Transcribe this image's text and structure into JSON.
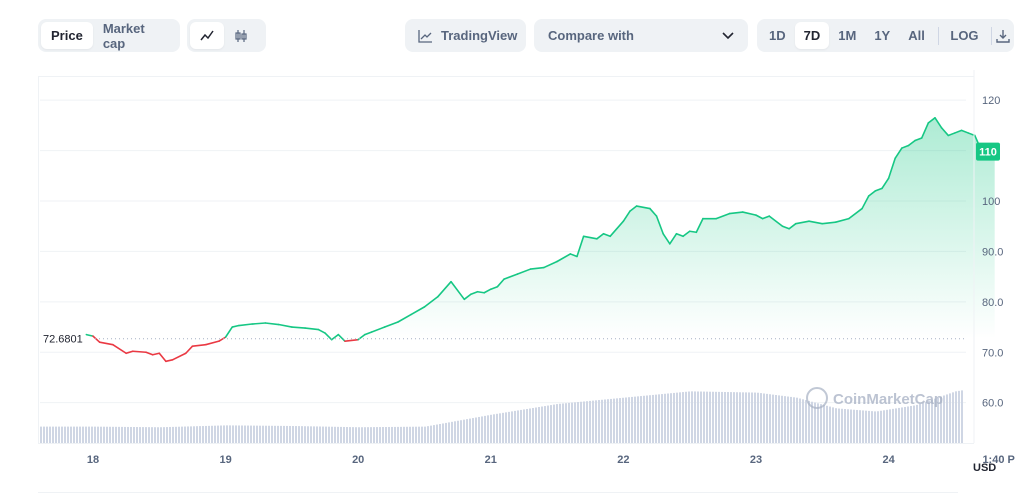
{
  "toolbar": {
    "view_tabs": [
      "Price",
      "Market cap"
    ],
    "active_view": "Price",
    "chart_type_icons": [
      "line-chart-icon",
      "candlestick-icon"
    ],
    "tradingview_label": "TradingView",
    "compare_label": "Compare with",
    "ranges": [
      "1D",
      "7D",
      "1M",
      "1Y",
      "All"
    ],
    "active_range": "7D",
    "log_label": "LOG",
    "download_icon": "download-icon"
  },
  "colors": {
    "up": "#16c784",
    "down": "#ea3943",
    "volume": "#cfd6e4",
    "grid": "#eff2f5",
    "text": "#58667e"
  },
  "chart_data": {
    "type": "area",
    "ylim": [
      52,
      124
    ],
    "y_ticks": [
      "120",
      "110",
      "100",
      "90.0",
      "80.0",
      "70.0",
      "60.0"
    ],
    "y_tick_values": [
      120,
      110,
      100,
      90,
      80,
      70,
      60
    ],
    "x_ticks": [
      "18",
      "19",
      "20",
      "21",
      "22",
      "23",
      "24",
      "1:40 P"
    ],
    "x_tick_values": [
      0,
      1,
      2,
      3,
      4,
      5,
      6,
      6.83
    ],
    "xlim": [
      -0.4,
      6.9
    ],
    "baseline_label": "72.6801",
    "baseline_value": 72.68,
    "current_price_label": "110",
    "current_price_value": 109.8,
    "axis_unit_label": "USD",
    "watermark": "CoinMarketCap",
    "series": [
      {
        "x": [
          -0.05,
          0.0,
          0.05,
          0.15,
          0.25,
          0.3,
          0.4,
          0.45,
          0.5,
          0.55,
          0.6,
          0.7,
          0.75,
          0.85,
          0.95,
          1.0,
          1.05,
          1.1,
          1.2,
          1.3,
          1.4,
          1.5,
          1.6,
          1.7,
          1.75,
          1.8,
          1.85,
          1.9,
          2.0,
          2.05,
          2.1,
          2.2,
          2.3,
          2.4,
          2.5,
          2.6,
          2.7,
          2.8,
          2.85,
          2.9,
          2.95,
          3.0,
          3.05,
          3.1,
          3.2,
          3.3,
          3.4,
          3.5,
          3.6,
          3.65,
          3.7,
          3.8,
          3.85,
          3.9,
          4.0,
          4.05,
          4.1,
          4.2,
          4.25,
          4.3,
          4.35,
          4.4,
          4.45,
          4.5,
          4.55,
          4.6,
          4.7,
          4.8,
          4.9,
          5.0,
          5.05,
          5.1,
          5.2,
          5.25,
          5.3,
          5.4,
          5.5,
          5.6,
          5.7,
          5.8,
          5.85,
          5.9,
          5.95,
          6.0,
          6.05,
          6.1,
          6.15,
          6.2,
          6.25,
          6.3,
          6.35,
          6.4,
          6.45,
          6.5,
          6.55,
          6.6,
          6.65,
          6.7,
          6.75,
          6.8
        ],
        "y": [
          73.5,
          73.2,
          72.0,
          71.5,
          69.8,
          70.2,
          70.0,
          69.5,
          69.8,
          68.2,
          68.5,
          69.8,
          71.2,
          71.5,
          72.2,
          73.0,
          75.0,
          75.3,
          75.6,
          75.8,
          75.5,
          75.0,
          74.8,
          74.5,
          73.8,
          72.5,
          73.5,
          72.2,
          72.5,
          73.5,
          74.0,
          75.0,
          76.0,
          77.5,
          79.0,
          81.0,
          84.0,
          80.5,
          81.5,
          82.0,
          81.8,
          82.5,
          83.0,
          84.5,
          85.5,
          86.5,
          86.8,
          88.0,
          89.5,
          89.0,
          93.0,
          92.5,
          93.5,
          93.0,
          96.0,
          98.0,
          99.0,
          98.5,
          97.0,
          93.5,
          91.5,
          93.5,
          93.0,
          94.0,
          93.8,
          96.5,
          96.5,
          97.5,
          97.8,
          97.2,
          96.5,
          97.0,
          95.0,
          94.5,
          95.5,
          96.0,
          95.5,
          95.8,
          96.5,
          98.5,
          101.0,
          102.0,
          102.5,
          104.5,
          108.5,
          110.5,
          111.0,
          112.0,
          112.5,
          115.5,
          116.5,
          114.5,
          113.0,
          113.5,
          114.0,
          113.5,
          113.0,
          110.0,
          109.8,
          109.8
        ]
      },
      {
        "name": "Volume",
        "x": [
          0,
          0.5,
          1.0,
          1.5,
          2.0,
          2.5,
          3.0,
          3.5,
          4.0,
          4.5,
          5.0,
          5.3,
          5.6,
          5.9,
          6.2,
          6.5,
          6.8
        ],
        "y": [
          0.26,
          0.25,
          0.28,
          0.27,
          0.25,
          0.26,
          0.45,
          0.62,
          0.72,
          0.82,
          0.8,
          0.72,
          0.55,
          0.5,
          0.6,
          0.82,
          0.92
        ]
      }
    ]
  }
}
